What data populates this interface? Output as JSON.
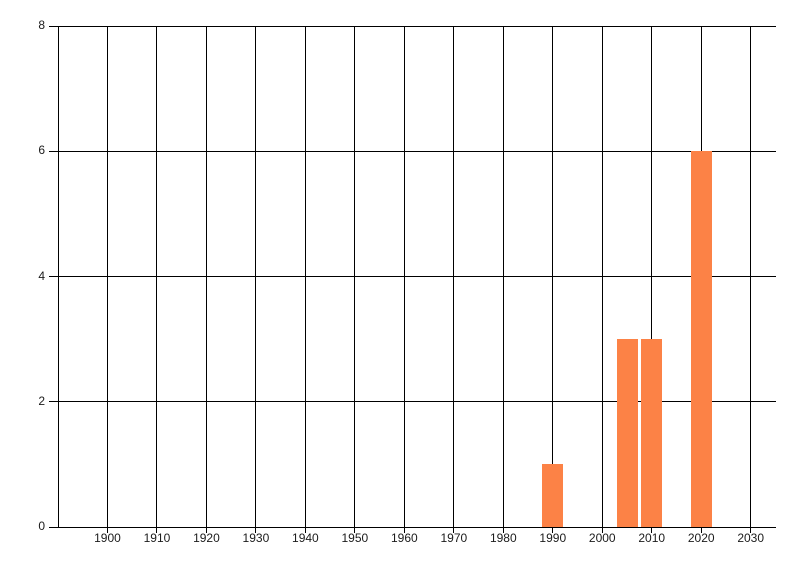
{
  "chart_data": {
    "type": "bar",
    "title": "",
    "xlabel": "",
    "ylabel": "",
    "x": [
      1990,
      2005,
      2010,
      2020
    ],
    "values": [
      1,
      3,
      3,
      6
    ],
    "ylim": [
      0,
      8
    ],
    "yticks": [
      0,
      2,
      4,
      6,
      8
    ],
    "ytick_labels": [
      "0",
      "2",
      "4",
      "6",
      "8"
    ],
    "xgrid_years": [
      1890,
      1900,
      1910,
      1920,
      1930,
      1940,
      1950,
      1960,
      1970,
      1980,
      1990,
      2000,
      2010,
      2020,
      2030
    ],
    "xtick_label_years": [
      1900,
      1910,
      1920,
      1930,
      1940,
      1950,
      1960,
      1970,
      1980,
      1990,
      2000,
      2010,
      2020,
      2030
    ],
    "xtick_labels": [
      "1900",
      "1910",
      "1920",
      "1930",
      "1940",
      "1950",
      "1960",
      "1970",
      "1980",
      "1990",
      "2000",
      "2010",
      "2020",
      "2030"
    ],
    "grid": true,
    "legend": false,
    "bar_color": "#fc8246",
    "grid_color": "#000000",
    "label_color": "#1b1b1b",
    "background": "#ffffff"
  }
}
